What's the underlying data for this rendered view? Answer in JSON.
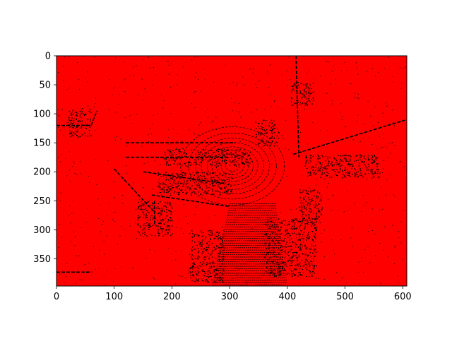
{
  "chart_data": {
    "type": "heatmap",
    "title": "",
    "xlabel": "",
    "ylabel": "",
    "xlim": [
      0,
      607
    ],
    "ylim": [
      397,
      0
    ],
    "x_ticks": [
      "0",
      "100",
      "200",
      "300",
      "400",
      "500",
      "600"
    ],
    "y_ticks": [
      "0",
      "50",
      "100",
      "150",
      "200",
      "250",
      "300",
      "350"
    ],
    "grid": false,
    "legend": "none",
    "colors": {
      "background_value": "#ff0000",
      "point_value": "#000000"
    },
    "features": {
      "center_rings": {
        "center": [
          305,
          190
        ],
        "rings": [
          12,
          20,
          28,
          36,
          44,
          54,
          64,
          76,
          90
        ]
      },
      "road_lines": [
        {
          "from": [
            0,
            120
          ],
          "to": [
            60,
            120
          ]
        },
        {
          "from": [
            60,
            120
          ],
          "to": [
            70,
            95
          ]
        },
        {
          "from": [
            410,
            170
          ],
          "to": [
            607,
            110
          ]
        },
        {
          "from": [
            415,
            0
          ],
          "to": [
            420,
            175
          ]
        },
        {
          "from": [
            120,
            150
          ],
          "to": [
            310,
            150
          ]
        },
        {
          "from": [
            120,
            175
          ],
          "to": [
            300,
            175
          ]
        },
        {
          "from": [
            150,
            200
          ],
          "to": [
            290,
            220
          ]
        },
        {
          "from": [
            165,
            240
          ],
          "to": [
            300,
            260
          ]
        },
        {
          "from": [
            100,
            195
          ],
          "to": [
            170,
            270
          ]
        },
        {
          "from": [
            170,
            250
          ],
          "to": [
            170,
            290
          ]
        },
        {
          "from": [
            0,
            373
          ],
          "to": [
            60,
            373
          ]
        }
      ],
      "point_clusters": [
        {
          "x": 345,
          "y": 110,
          "w": 40,
          "h": 45
        },
        {
          "x": 405,
          "y": 45,
          "w": 40,
          "h": 40
        },
        {
          "x": 430,
          "y": 170,
          "w": 130,
          "h": 40
        },
        {
          "x": 185,
          "y": 160,
          "w": 150,
          "h": 30
        },
        {
          "x": 175,
          "y": 200,
          "w": 130,
          "h": 40
        },
        {
          "x": 230,
          "y": 300,
          "w": 60,
          "h": 90
        },
        {
          "x": 360,
          "y": 280,
          "w": 90,
          "h": 100
        },
        {
          "x": 20,
          "y": 90,
          "w": 40,
          "h": 50
        },
        {
          "x": 140,
          "y": 250,
          "w": 60,
          "h": 60
        },
        {
          "x": 420,
          "y": 230,
          "w": 40,
          "h": 60
        }
      ],
      "lower_sweep": {
        "x_left_top": 300,
        "x_right_top": 380,
        "x_left_bottom": 270,
        "x_right_bottom": 400,
        "y_top": 255,
        "y_bottom": 397
      }
    }
  }
}
